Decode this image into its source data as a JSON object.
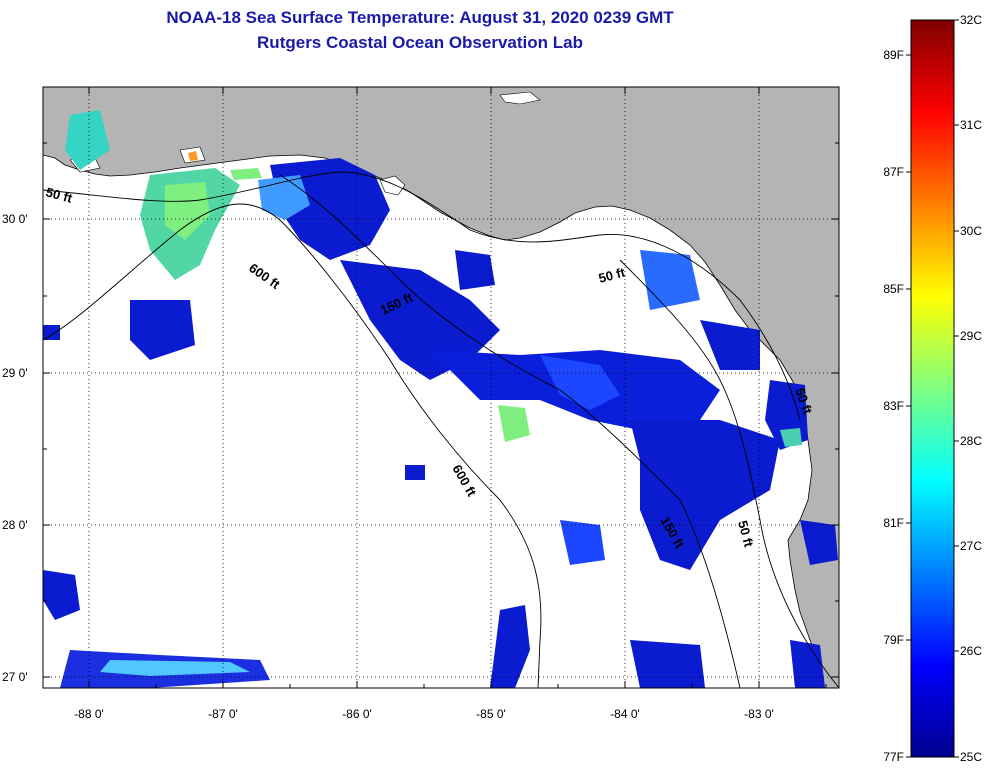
{
  "header": {
    "title_line1": "NOAA-18 Sea Surface Temperature:  August 31, 2020 0239 GMT",
    "title_line2": "Rutgers Coastal Ocean Observation Lab"
  },
  "map": {
    "lon_labels": [
      "-88 0'",
      "-87 0'",
      "-86 0'",
      "-85 0'",
      "-84 0'",
      "-83 0'"
    ],
    "lat_labels": [
      "30 0'",
      "29 0'",
      "28 0'",
      "27 0'"
    ],
    "contour_labels": [
      "50 ft",
      "600 ft",
      "150 ft",
      "50 ft",
      "600 ft",
      "150 ft",
      "50 ft",
      "50 ft"
    ],
    "colors": {
      "land": "#b4b4b4",
      "nodata": "#ffffff",
      "cloud": "#ffffff"
    }
  },
  "colorbar": {
    "celsius_labels": [
      "32C",
      "31C",
      "30C",
      "29C",
      "28C",
      "27C",
      "26C",
      "25C"
    ],
    "fahrenheit_labels": [
      "89F",
      "87F",
      "85F",
      "83F",
      "81F",
      "79F",
      "77F"
    ],
    "colors": [
      "#00008f",
      "#0000ff",
      "#007fff",
      "#00ffff",
      "#7fff7f",
      "#ffff00",
      "#ff7f00",
      "#ff0000",
      "#7f0000"
    ]
  }
}
